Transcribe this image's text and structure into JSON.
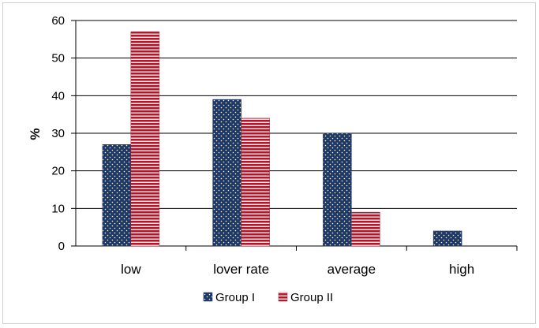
{
  "chart_data": {
    "type": "bar",
    "title": "",
    "xlabel": "",
    "ylabel": "%",
    "ylim": [
      0,
      60
    ],
    "yticks": [
      0,
      10,
      20,
      30,
      40,
      50,
      60
    ],
    "categories": [
      "low",
      "lover rate",
      "average",
      "high"
    ],
    "series": [
      {
        "name": "Group I",
        "values": [
          27,
          39,
          30,
          4
        ],
        "color": "#1f3864",
        "pattern": "dots"
      },
      {
        "name": "Group II",
        "values": [
          57,
          34,
          9,
          0
        ],
        "color": "#b0182a",
        "pattern": "horizontal-lines"
      }
    ],
    "grid": true,
    "legend": "bottom-center"
  }
}
